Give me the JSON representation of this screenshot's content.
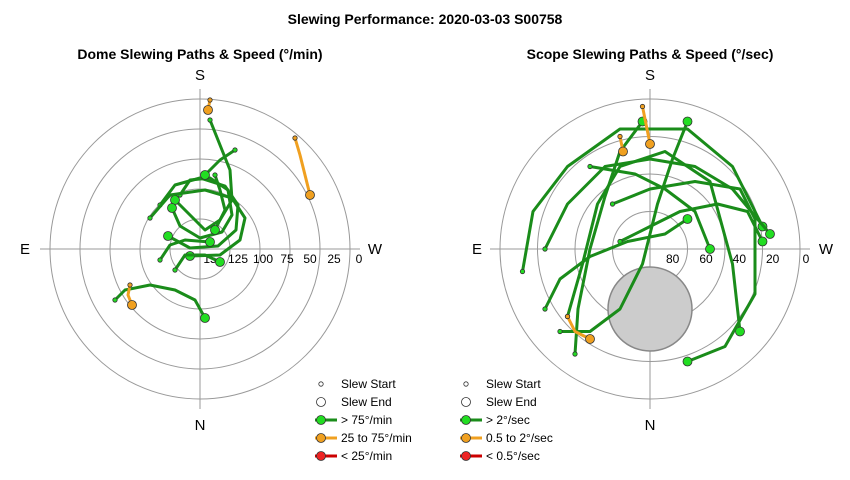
{
  "title": "Slewing Performance: 2020-03-03 S00758",
  "colors": {
    "fast": "#1a8c1a",
    "fast_marker": "#22dd22",
    "medium": "#f0a020",
    "medium_marker": "#f0a020",
    "slow": "#cc0000",
    "slow_marker": "#ee2222",
    "grid": "#999999",
    "zenith_mask": "#cccccc"
  },
  "chart_data": [
    {
      "type": "polar-scatter",
      "title": "Dome Slewing Paths & Speed (°/min)",
      "compass": {
        "top": "S",
        "bottom": "N",
        "left": "E",
        "right": "W"
      },
      "radial_axis": "altitude",
      "radial_range": [
        0,
        125
      ],
      "ring_labels": [
        "125",
        "100",
        "75",
        "50",
        "25",
        "0"
      ],
      "ring_values": [
        125,
        100,
        75,
        50,
        25,
        0
      ],
      "extra_label": "15",
      "legend": [
        {
          "label": "Slew Start",
          "kind": "start"
        },
        {
          "label": "Slew End",
          "kind": "end"
        },
        {
          "label": "> 75°/min",
          "kind": "fast"
        },
        {
          "label": "25 to 75°/min",
          "kind": "medium"
        },
        {
          "label": "< 25°/min",
          "kind": "slow"
        }
      ],
      "paths": [
        {
          "speed": "fast",
          "points": [
            [
              210,
              120
            ],
            [
              218,
              140
            ],
            [
              230,
              170
            ],
            [
              232,
              200
            ],
            [
              220,
              220
            ],
            [
              205,
              230
            ],
            [
              190,
              215
            ],
            [
              175,
              200
            ]
          ]
        },
        {
          "speed": "fast",
          "points": [
            [
              180,
              195
            ],
            [
              190,
              180
            ],
            [
              210,
              178
            ],
            [
              228,
              190
            ],
            [
              232,
              215
            ],
            [
              222,
              232
            ],
            [
              200,
              238
            ],
            [
              180,
              226
            ],
            [
              172,
              208
            ]
          ]
        },
        {
          "speed": "fast",
          "points": [
            [
              160,
              205
            ],
            [
              175,
              185
            ],
            [
              200,
              178
            ],
            [
              225,
              186
            ],
            [
              238,
              205
            ],
            [
              236,
              230
            ],
            [
              218,
              246
            ],
            [
              190,
              248
            ],
            [
              168,
              236
            ]
          ]
        },
        {
          "speed": "fast",
          "points": [
            [
              150,
              218
            ],
            [
              170,
              195
            ],
            [
              205,
              190
            ],
            [
              232,
              198
            ],
            [
              245,
              218
            ],
            [
              240,
              240
            ],
            [
              220,
              255
            ],
            [
              190,
              256
            ]
          ]
        },
        {
          "speed": "fast",
          "points": [
            [
              115,
              300
            ],
            [
              125,
              290
            ],
            [
              150,
              285
            ],
            [
              175,
              290
            ],
            [
              195,
              300
            ],
            [
              205,
              318
            ]
          ]
        },
        {
          "speed": "fast",
          "points": [
            [
              235,
              150
            ],
            [
              220,
              160
            ],
            [
              205,
              175
            ]
          ]
        },
        {
          "speed": "fast",
          "points": [
            [
              215,
              175
            ],
            [
              220,
              190
            ],
            [
              225,
              210
            ],
            [
              215,
              230
            ]
          ]
        },
        {
          "speed": "fast",
          "points": [
            [
              160,
              260
            ],
            [
              170,
              245
            ],
            [
              185,
              240
            ],
            [
              210,
              242
            ]
          ]
        },
        {
          "speed": "fast",
          "points": [
            [
              175,
              270
            ],
            [
              185,
              255
            ],
            [
              205,
              255
            ],
            [
              220,
              262
            ]
          ]
        },
        {
          "speed": "medium",
          "points": [
            [
              295,
              138
            ],
            [
              300,
              155
            ],
            [
              305,
              175
            ],
            [
              310,
              195
            ]
          ]
        },
        {
          "speed": "medium",
          "points": [
            [
              130,
              285
            ],
            [
              128,
              295
            ],
            [
              132,
              305
            ]
          ]
        },
        {
          "speed": "medium",
          "points": [
            [
              210,
              100
            ],
            [
              208,
              110
            ]
          ]
        }
      ]
    },
    {
      "type": "polar-scatter",
      "title": "Scope Slewing Paths & Speed (°/sec)",
      "compass": {
        "top": "S",
        "bottom": "N",
        "left": "E",
        "right": "W"
      },
      "radial_axis": "altitude",
      "radial_range": [
        0,
        90
      ],
      "ring_labels": [
        "80",
        "60",
        "40",
        "20",
        "0"
      ],
      "ring_values": [
        80,
        60,
        40,
        20,
        0
      ],
      "zenith_mask_center_offset": [
        0,
        -0.4
      ],
      "legend": [
        {
          "label": "Slew Start",
          "kind": "start"
        },
        {
          "label": "Slew End",
          "kind": "end"
        },
        {
          "label": "> 2°/sec",
          "kind": "fast"
        },
        {
          "label": "0.5 to 2°/sec",
          "kind": "medium"
        },
        {
          "label": "< 0.5°/sec",
          "kind": "slow"
        }
      ],
      "paths": [
        {
          "speed": "fast",
          "points": [
            [
              -0.85,
              0.15
            ],
            [
              -0.78,
              -0.25
            ],
            [
              -0.55,
              -0.55
            ],
            [
              -0.2,
              -0.8
            ],
            [
              0.25,
              -0.8
            ],
            [
              0.55,
              -0.55
            ],
            [
              0.75,
              -0.15
            ]
          ]
        },
        {
          "speed": "fast",
          "points": [
            [
              -0.7,
              0.0
            ],
            [
              -0.55,
              -0.3
            ],
            [
              -0.3,
              -0.55
            ],
            [
              0.0,
              -0.6
            ],
            [
              0.3,
              -0.55
            ],
            [
              0.55,
              -0.4
            ],
            [
              0.8,
              -0.1
            ]
          ]
        },
        {
          "speed": "fast",
          "points": [
            [
              -0.55,
              0.45
            ],
            [
              -0.45,
              0.1
            ],
            [
              -0.35,
              -0.3
            ],
            [
              -0.2,
              -0.55
            ],
            [
              0.1,
              -0.65
            ],
            [
              0.4,
              -0.45
            ],
            [
              0.55,
              0.1
            ],
            [
              0.6,
              0.55
            ]
          ]
        },
        {
          "speed": "fast",
          "points": [
            [
              -0.6,
              0.55
            ],
            [
              -0.4,
              0.55
            ],
            [
              -0.2,
              0.4
            ],
            [
              -0.05,
              0.1
            ],
            [
              0.05,
              -0.3
            ],
            [
              0.15,
              -0.6
            ],
            [
              0.25,
              -0.85
            ]
          ]
        },
        {
          "speed": "fast",
          "points": [
            [
              -0.5,
              0.7
            ],
            [
              -0.48,
              0.4
            ],
            [
              -0.4,
              0.0
            ],
            [
              -0.3,
              -0.35
            ],
            [
              -0.2,
              -0.65
            ],
            [
              -0.05,
              -0.85
            ]
          ]
        },
        {
          "speed": "fast",
          "points": [
            [
              -0.25,
              -0.3
            ],
            [
              0.0,
              -0.4
            ],
            [
              0.3,
              -0.45
            ],
            [
              0.6,
              -0.4
            ],
            [
              0.7,
              -0.2
            ],
            [
              0.7,
              0.3
            ],
            [
              0.5,
              0.65
            ],
            [
              0.25,
              0.75
            ]
          ]
        },
        {
          "speed": "fast",
          "points": [
            [
              -0.2,
              -0.05
            ],
            [
              0.0,
              -0.15
            ],
            [
              0.2,
              -0.25
            ],
            [
              0.45,
              -0.3
            ],
            [
              0.65,
              -0.25
            ],
            [
              0.75,
              -0.05
            ]
          ]
        },
        {
          "speed": "fast",
          "points": [
            [
              -0.7,
              0.4
            ],
            [
              -0.6,
              0.2
            ],
            [
              -0.4,
              0.05
            ],
            [
              -0.15,
              -0.05
            ],
            [
              0.1,
              -0.1
            ],
            [
              0.25,
              -0.2
            ]
          ]
        },
        {
          "speed": "fast",
          "points": [
            [
              -0.4,
              -0.55
            ],
            [
              -0.1,
              -0.5
            ],
            [
              0.1,
              -0.4
            ],
            [
              0.3,
              -0.25
            ],
            [
              0.4,
              0.0
            ]
          ]
        },
        {
          "speed": "medium",
          "points": [
            [
              -0.05,
              -0.95
            ],
            [
              -0.02,
              -0.8
            ],
            [
              0.0,
              -0.7
            ]
          ]
        },
        {
          "speed": "medium",
          "points": [
            [
              -0.55,
              0.45
            ],
            [
              -0.5,
              0.55
            ],
            [
              -0.4,
              0.6
            ]
          ]
        },
        {
          "speed": "medium",
          "points": [
            [
              -0.2,
              -0.75
            ],
            [
              -0.18,
              -0.65
            ]
          ]
        }
      ]
    }
  ]
}
